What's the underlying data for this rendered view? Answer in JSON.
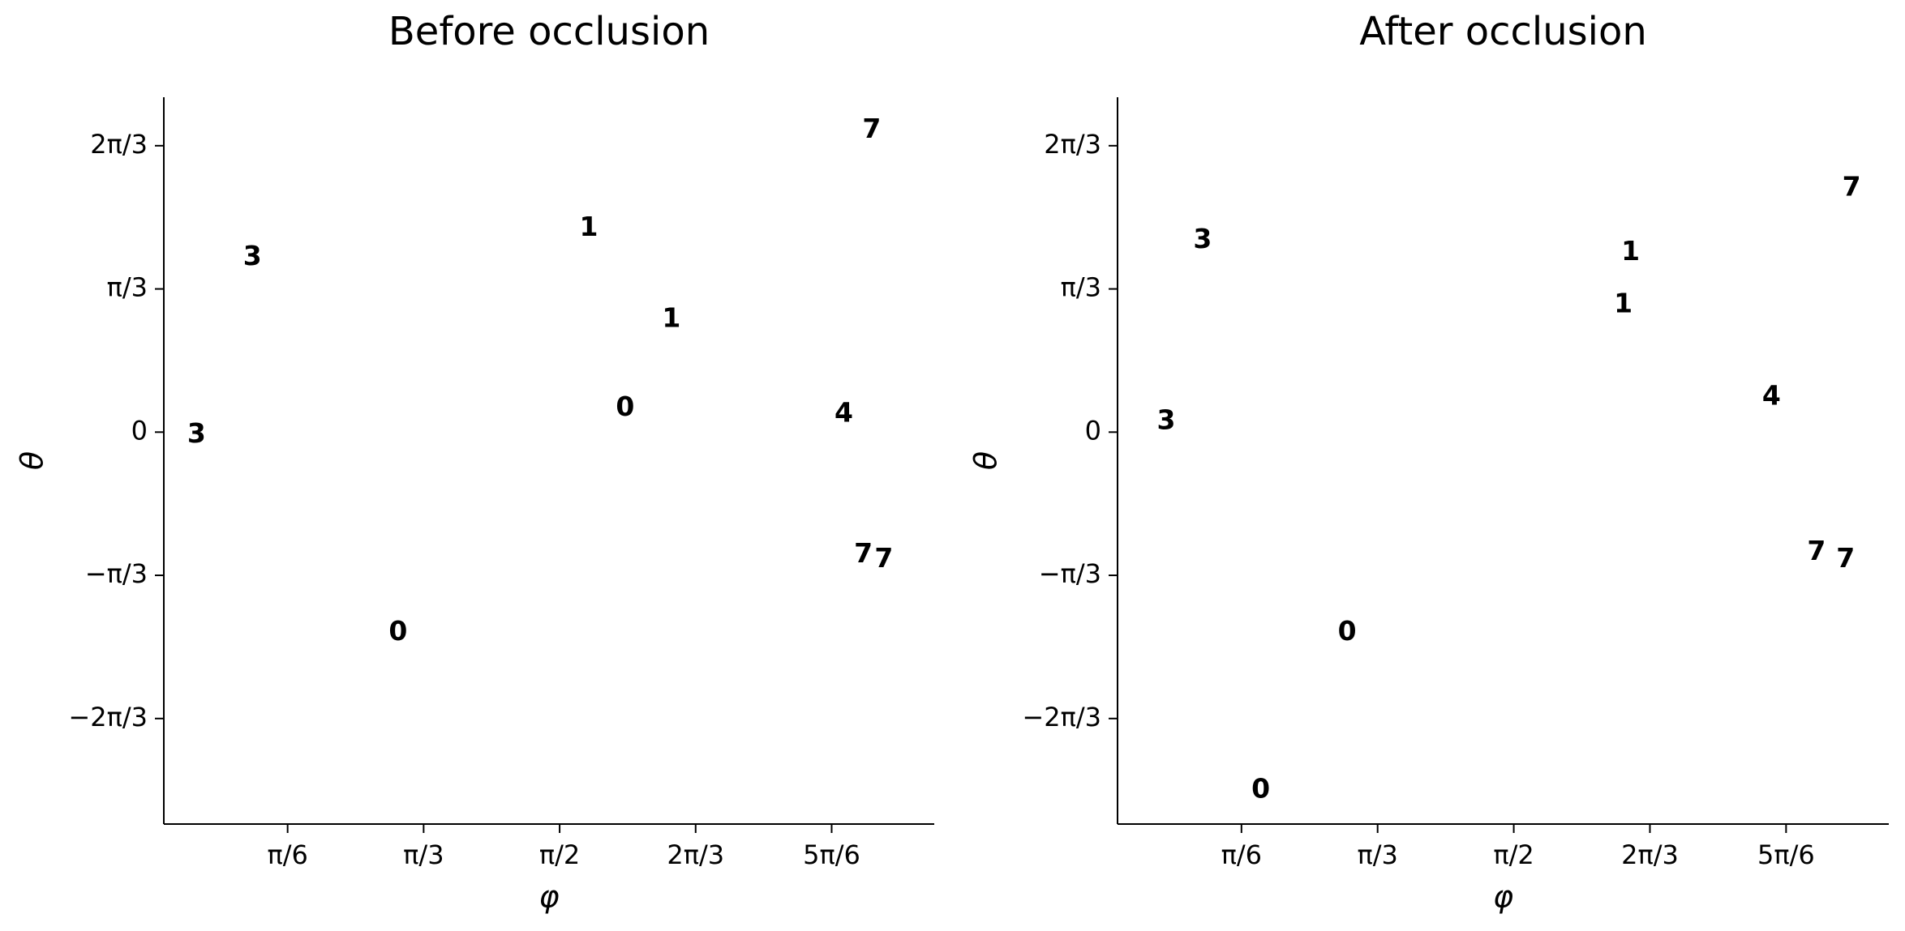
{
  "chart_data": [
    {
      "type": "scatter",
      "title": "Before occlusion",
      "x_label": "φ",
      "y_label": "θ",
      "xlim": [
        0.047,
        3.013
      ],
      "ylim": [
        -2.866,
        2.449
      ],
      "xticks": [
        {
          "value": 0.5236,
          "label": "π/6"
        },
        {
          "value": 1.0472,
          "label": "π/3"
        },
        {
          "value": 1.5708,
          "label": "π/2"
        },
        {
          "value": 2.0944,
          "label": "2π/3"
        },
        {
          "value": 2.618,
          "label": "5π/6"
        }
      ],
      "yticks": [
        {
          "value": -2.0944,
          "label": "−2π/3"
        },
        {
          "value": -1.0472,
          "label": "−π/3"
        },
        0,
        {
          "value": 1.0472,
          "label": "π/3"
        },
        {
          "value": 2.0944,
          "label": "2π/3"
        }
      ],
      "series": [
        {
          "name": "0",
          "color": "#4a8fc0",
          "x": [
            1.823,
            0.949
          ],
          "values": [
            0.177,
            -1.464
          ]
        },
        {
          "name": "1",
          "color": "#f59a3e",
          "x": [
            1.683,
            2.001
          ],
          "values": [
            1.491,
            0.825
          ]
        },
        {
          "name": "3",
          "color": "#d9454b",
          "x": [
            0.388,
            0.173
          ],
          "values": [
            1.278,
            -0.018
          ]
        },
        {
          "name": "4",
          "color": "#a57fcc",
          "x": [
            2.665
          ],
          "values": [
            0.133
          ]
        },
        {
          "name": "7",
          "color": "#999999",
          "x": [
            2.772,
            2.74,
            2.819
          ],
          "values": [
            2.209,
            -0.896,
            -0.932
          ]
        }
      ]
    },
    {
      "type": "scatter",
      "title": "After occlusion",
      "x_label": "φ",
      "y_label": "θ",
      "xlim": [
        0.047,
        3.013
      ],
      "ylim": [
        -2.866,
        2.449
      ],
      "xticks": [
        {
          "value": 0.5236,
          "label": "π/6"
        },
        {
          "value": 1.0472,
          "label": "π/3"
        },
        {
          "value": 1.5708,
          "label": "π/2"
        },
        {
          "value": 2.0944,
          "label": "2π/3"
        },
        {
          "value": 2.618,
          "label": "5π/6"
        }
      ],
      "yticks": [
        {
          "value": -2.0944,
          "label": "−2π/3"
        },
        {
          "value": -1.0472,
          "label": "−π/3"
        },
        0,
        {
          "value": 1.0472,
          "label": "π/3"
        },
        {
          "value": 2.0944,
          "label": "2π/3"
        }
      ],
      "series": [
        {
          "name": "0",
          "color": "#4a8fc0",
          "x": [
            0.93,
            0.598
          ],
          "values": [
            -1.464,
            -2.618
          ]
        },
        {
          "name": "1",
          "color": "#f59a3e",
          "x": [
            2.02,
            1.992
          ],
          "values": [
            1.313,
            0.932
          ]
        },
        {
          "name": "3",
          "color": "#d9454b",
          "x": [
            0.374,
            0.234
          ],
          "values": [
            1.402,
            0.08
          ]
        },
        {
          "name": "4",
          "color": "#a57fcc",
          "x": [
            2.562
          ],
          "values": [
            0.257
          ]
        },
        {
          "name": "7",
          "color": "#999999",
          "x": [
            2.87,
            2.735,
            2.847
          ],
          "values": [
            1.784,
            -0.878,
            -0.932
          ]
        }
      ]
    }
  ]
}
